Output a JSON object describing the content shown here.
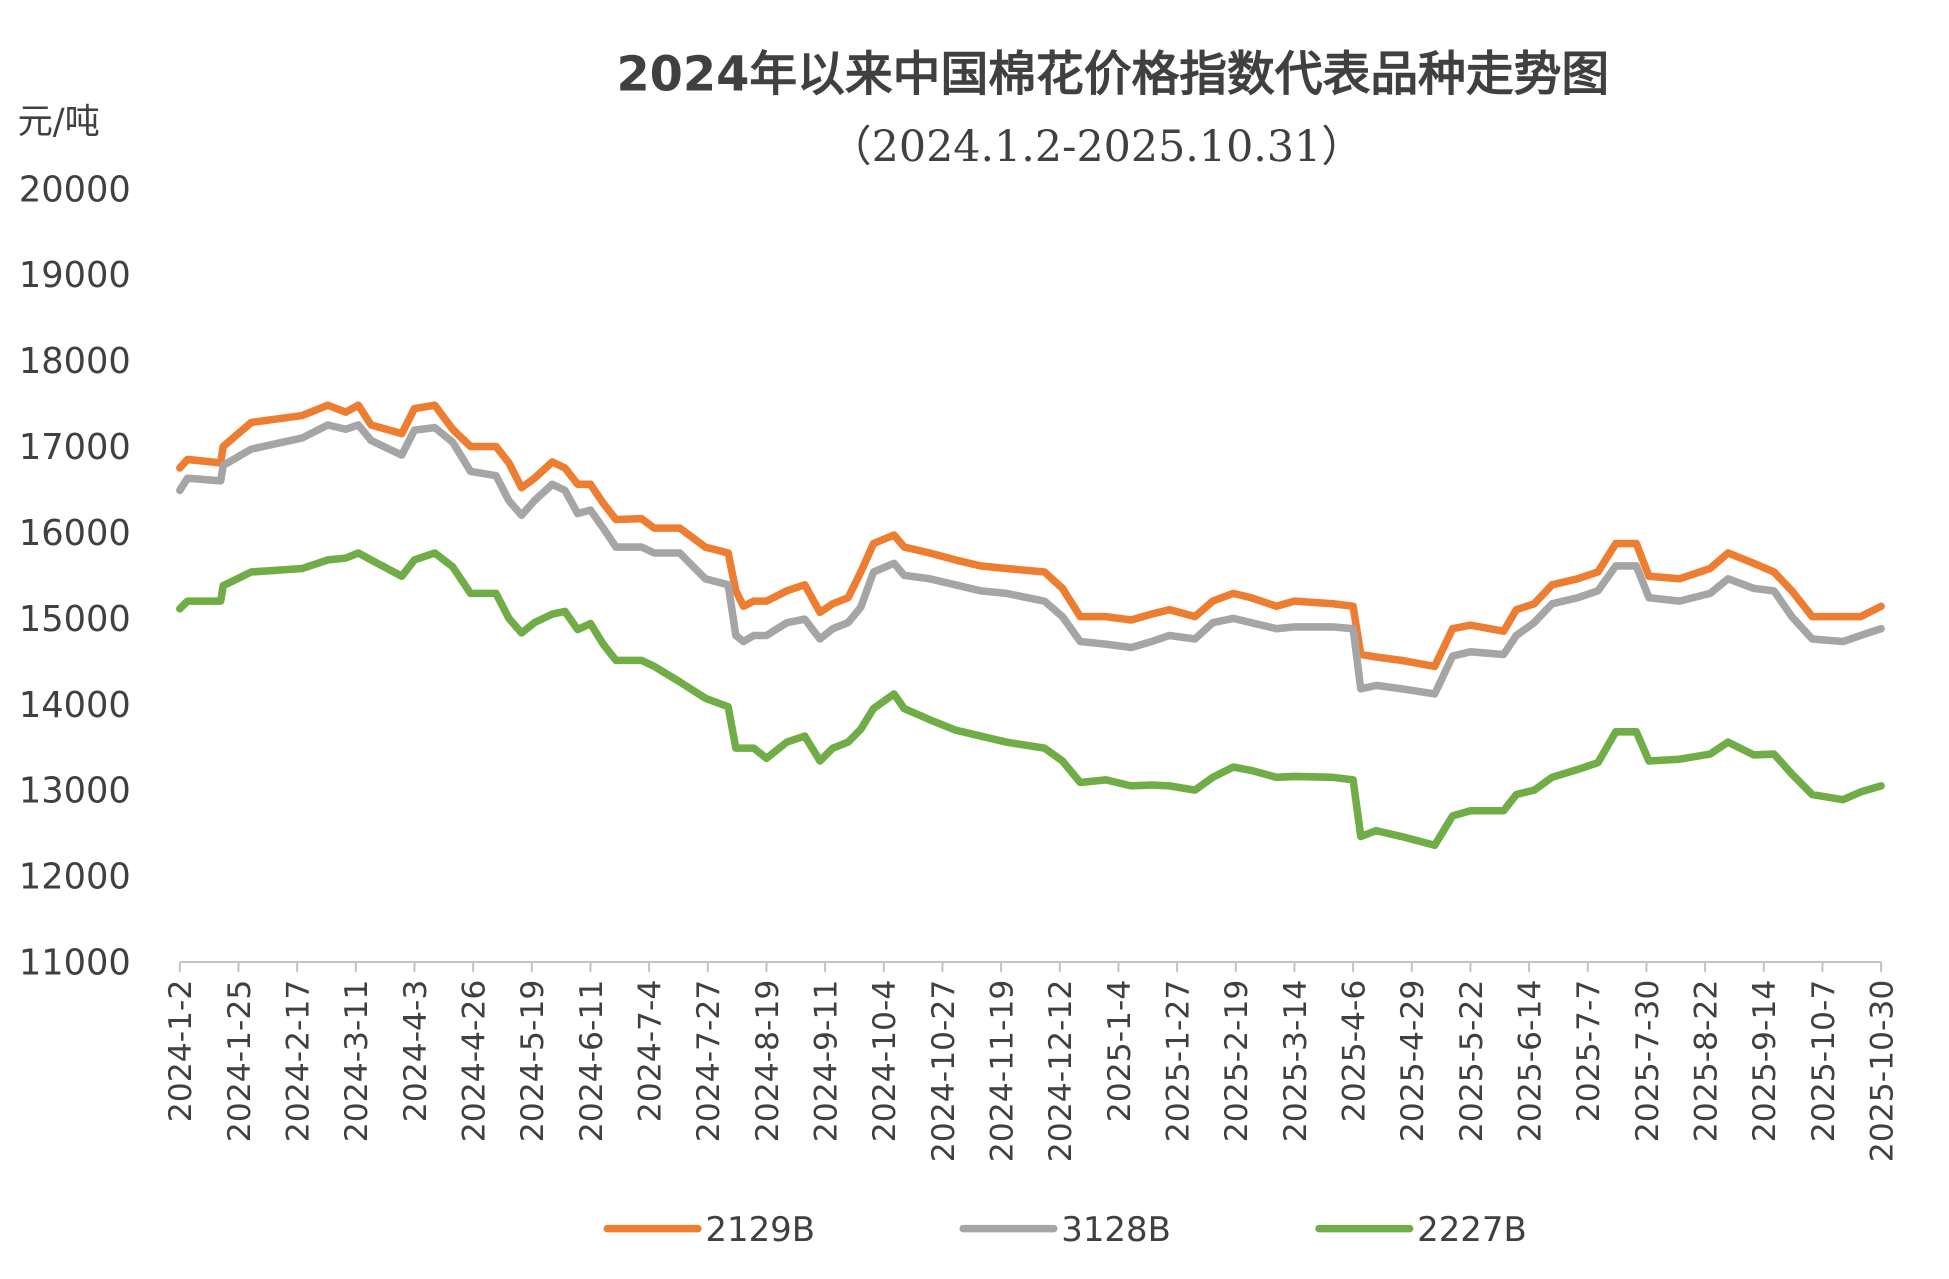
{
  "chart_data": {
    "type": "line",
    "title": "2024年以来中国棉花价格指数代表品种走势图",
    "subtitle": "（2024.1.2-2025.10.31）",
    "ylabel": "元/吨",
    "xlabel": "",
    "ylim": [
      11000,
      20000
    ],
    "yticks": [
      "11000",
      "12000",
      "13000",
      "14000",
      "15000",
      "16000",
      "17000",
      "18000",
      "19000",
      "20000"
    ],
    "xticks": [
      "2024-1-2",
      "2024-1-25",
      "2024-2-17",
      "2024-3-11",
      "2024-4-3",
      "2024-4-26",
      "2024-5-19",
      "2024-6-11",
      "2024-7-4",
      "2024-7-27",
      "2024-8-19",
      "2024-9-11",
      "2024-10-4",
      "2024-10-27",
      "2024-11-19",
      "2024-12-12",
      "2025-1-4",
      "2025-1-27",
      "2025-2-19",
      "2025-3-14",
      "2025-4-6",
      "2025-4-29",
      "2025-5-22",
      "2025-6-14",
      "2025-7-7",
      "2025-7-30",
      "2025-8-22",
      "2025-9-14",
      "2025-10-7",
      "2025-10-30"
    ],
    "grid": false,
    "legend": "bottom",
    "x": [
      "2024-01-02",
      "2024-01-05",
      "2024-01-18",
      "2024-01-19",
      "2024-01-30",
      "2024-02-19",
      "2024-02-29",
      "2024-03-07",
      "2024-03-12",
      "2024-03-17",
      "2024-03-29",
      "2024-04-03",
      "2024-04-11",
      "2024-04-18",
      "2024-04-25",
      "2024-05-05",
      "2024-05-10",
      "2024-05-15",
      "2024-05-20",
      "2024-05-27",
      "2024-06-01",
      "2024-06-06",
      "2024-06-11",
      "2024-06-16",
      "2024-06-21",
      "2024-07-01",
      "2024-07-06",
      "2024-07-16",
      "2024-07-26",
      "2024-08-04",
      "2024-08-07",
      "2024-08-10",
      "2024-08-14",
      "2024-08-19",
      "2024-08-27",
      "2024-09-03",
      "2024-09-09",
      "2024-09-14",
      "2024-09-20",
      "2024-09-25",
      "2024-09-30",
      "2024-10-08",
      "2024-10-12",
      "2024-10-22",
      "2024-11-01",
      "2024-11-11",
      "2024-11-21",
      "2024-12-06",
      "2024-12-13",
      "2024-12-20",
      "2024-12-30",
      "2025-01-09",
      "2025-01-17",
      "2025-01-24",
      "2025-02-03",
      "2025-02-10",
      "2025-02-18",
      "2025-02-25",
      "2025-03-07",
      "2025-03-14",
      "2025-03-29",
      "2025-04-06",
      "2025-04-09",
      "2025-04-15",
      "2025-04-25",
      "2025-05-08",
      "2025-05-15",
      "2025-05-22",
      "2025-06-04",
      "2025-06-09",
      "2025-06-16",
      "2025-06-23",
      "2025-07-03",
      "2025-07-11",
      "2025-07-18",
      "2025-07-26",
      "2025-07-31",
      "2025-08-12",
      "2025-08-24",
      "2025-08-31",
      "2025-09-10",
      "2025-09-18",
      "2025-09-25",
      "2025-10-03",
      "2025-10-15",
      "2025-10-22",
      "2025-10-30"
    ],
    "series": [
      {
        "name": "2129B",
        "color": "#ED7D31",
        "values": [
          16750,
          16850,
          16810,
          17000,
          17280,
          17360,
          17480,
          17400,
          17480,
          17250,
          17150,
          17440,
          17480,
          17200,
          17000,
          17000,
          16810,
          16520,
          16630,
          16820,
          16750,
          16560,
          16560,
          16340,
          16150,
          16160,
          16050,
          16050,
          15830,
          15760,
          15320,
          15140,
          15200,
          15200,
          15320,
          15390,
          15070,
          15170,
          15240,
          15540,
          15870,
          15970,
          15830,
          15760,
          15680,
          15610,
          15580,
          15540,
          15350,
          15020,
          15020,
          14980,
          15050,
          15100,
          15020,
          15200,
          15290,
          15240,
          15140,
          15200,
          15170,
          15140,
          14580,
          14550,
          14510,
          14440,
          14880,
          14920,
          14850,
          15100,
          15170,
          15390,
          15460,
          15540,
          15870,
          15870,
          15490,
          15460,
          15580,
          15760,
          15640,
          15540,
          15320,
          15020,
          15020,
          15020,
          15140
        ]
      },
      {
        "name": "3128B",
        "color": "#A5A5A5",
        "values": [
          16490,
          16630,
          16600,
          16780,
          16970,
          17100,
          17250,
          17200,
          17250,
          17070,
          16900,
          17190,
          17220,
          17050,
          16710,
          16660,
          16370,
          16200,
          16370,
          16560,
          16490,
          16220,
          16260,
          16050,
          15830,
          15830,
          15760,
          15760,
          15460,
          15390,
          14800,
          14730,
          14800,
          14800,
          14950,
          14990,
          14760,
          14880,
          14950,
          15130,
          15540,
          15640,
          15500,
          15460,
          15390,
          15320,
          15290,
          15200,
          15020,
          14730,
          14700,
          14660,
          14730,
          14800,
          14760,
          14950,
          15000,
          14950,
          14880,
          14900,
          14900,
          14880,
          14180,
          14220,
          14180,
          14120,
          14560,
          14610,
          14580,
          14800,
          14950,
          15170,
          15240,
          15320,
          15610,
          15610,
          15240,
          15200,
          15290,
          15460,
          15350,
          15320,
          15020,
          14760,
          14730,
          14800,
          14880
        ]
      },
      {
        "name": "2227B",
        "color": "#70AD47",
        "values": [
          15110,
          15200,
          15200,
          15380,
          15540,
          15580,
          15680,
          15700,
          15760,
          15680,
          15490,
          15680,
          15760,
          15600,
          15290,
          15290,
          15000,
          14830,
          14950,
          15050,
          15080,
          14870,
          14940,
          14700,
          14510,
          14510,
          14440,
          14260,
          14070,
          13970,
          13490,
          13490,
          13490,
          13370,
          13560,
          13630,
          13340,
          13490,
          13560,
          13710,
          13950,
          14120,
          13950,
          13820,
          13700,
          13630,
          13560,
          13490,
          13340,
          13090,
          13120,
          13050,
          13060,
          13050,
          13000,
          13150,
          13270,
          13230,
          13150,
          13160,
          13150,
          13120,
          12460,
          12530,
          12460,
          12360,
          12700,
          12760,
          12760,
          12950,
          13000,
          13150,
          13240,
          13320,
          13680,
          13680,
          13340,
          13360,
          13420,
          13560,
          13410,
          13420,
          13190,
          12950,
          12890,
          12980,
          13050
        ]
      }
    ]
  }
}
